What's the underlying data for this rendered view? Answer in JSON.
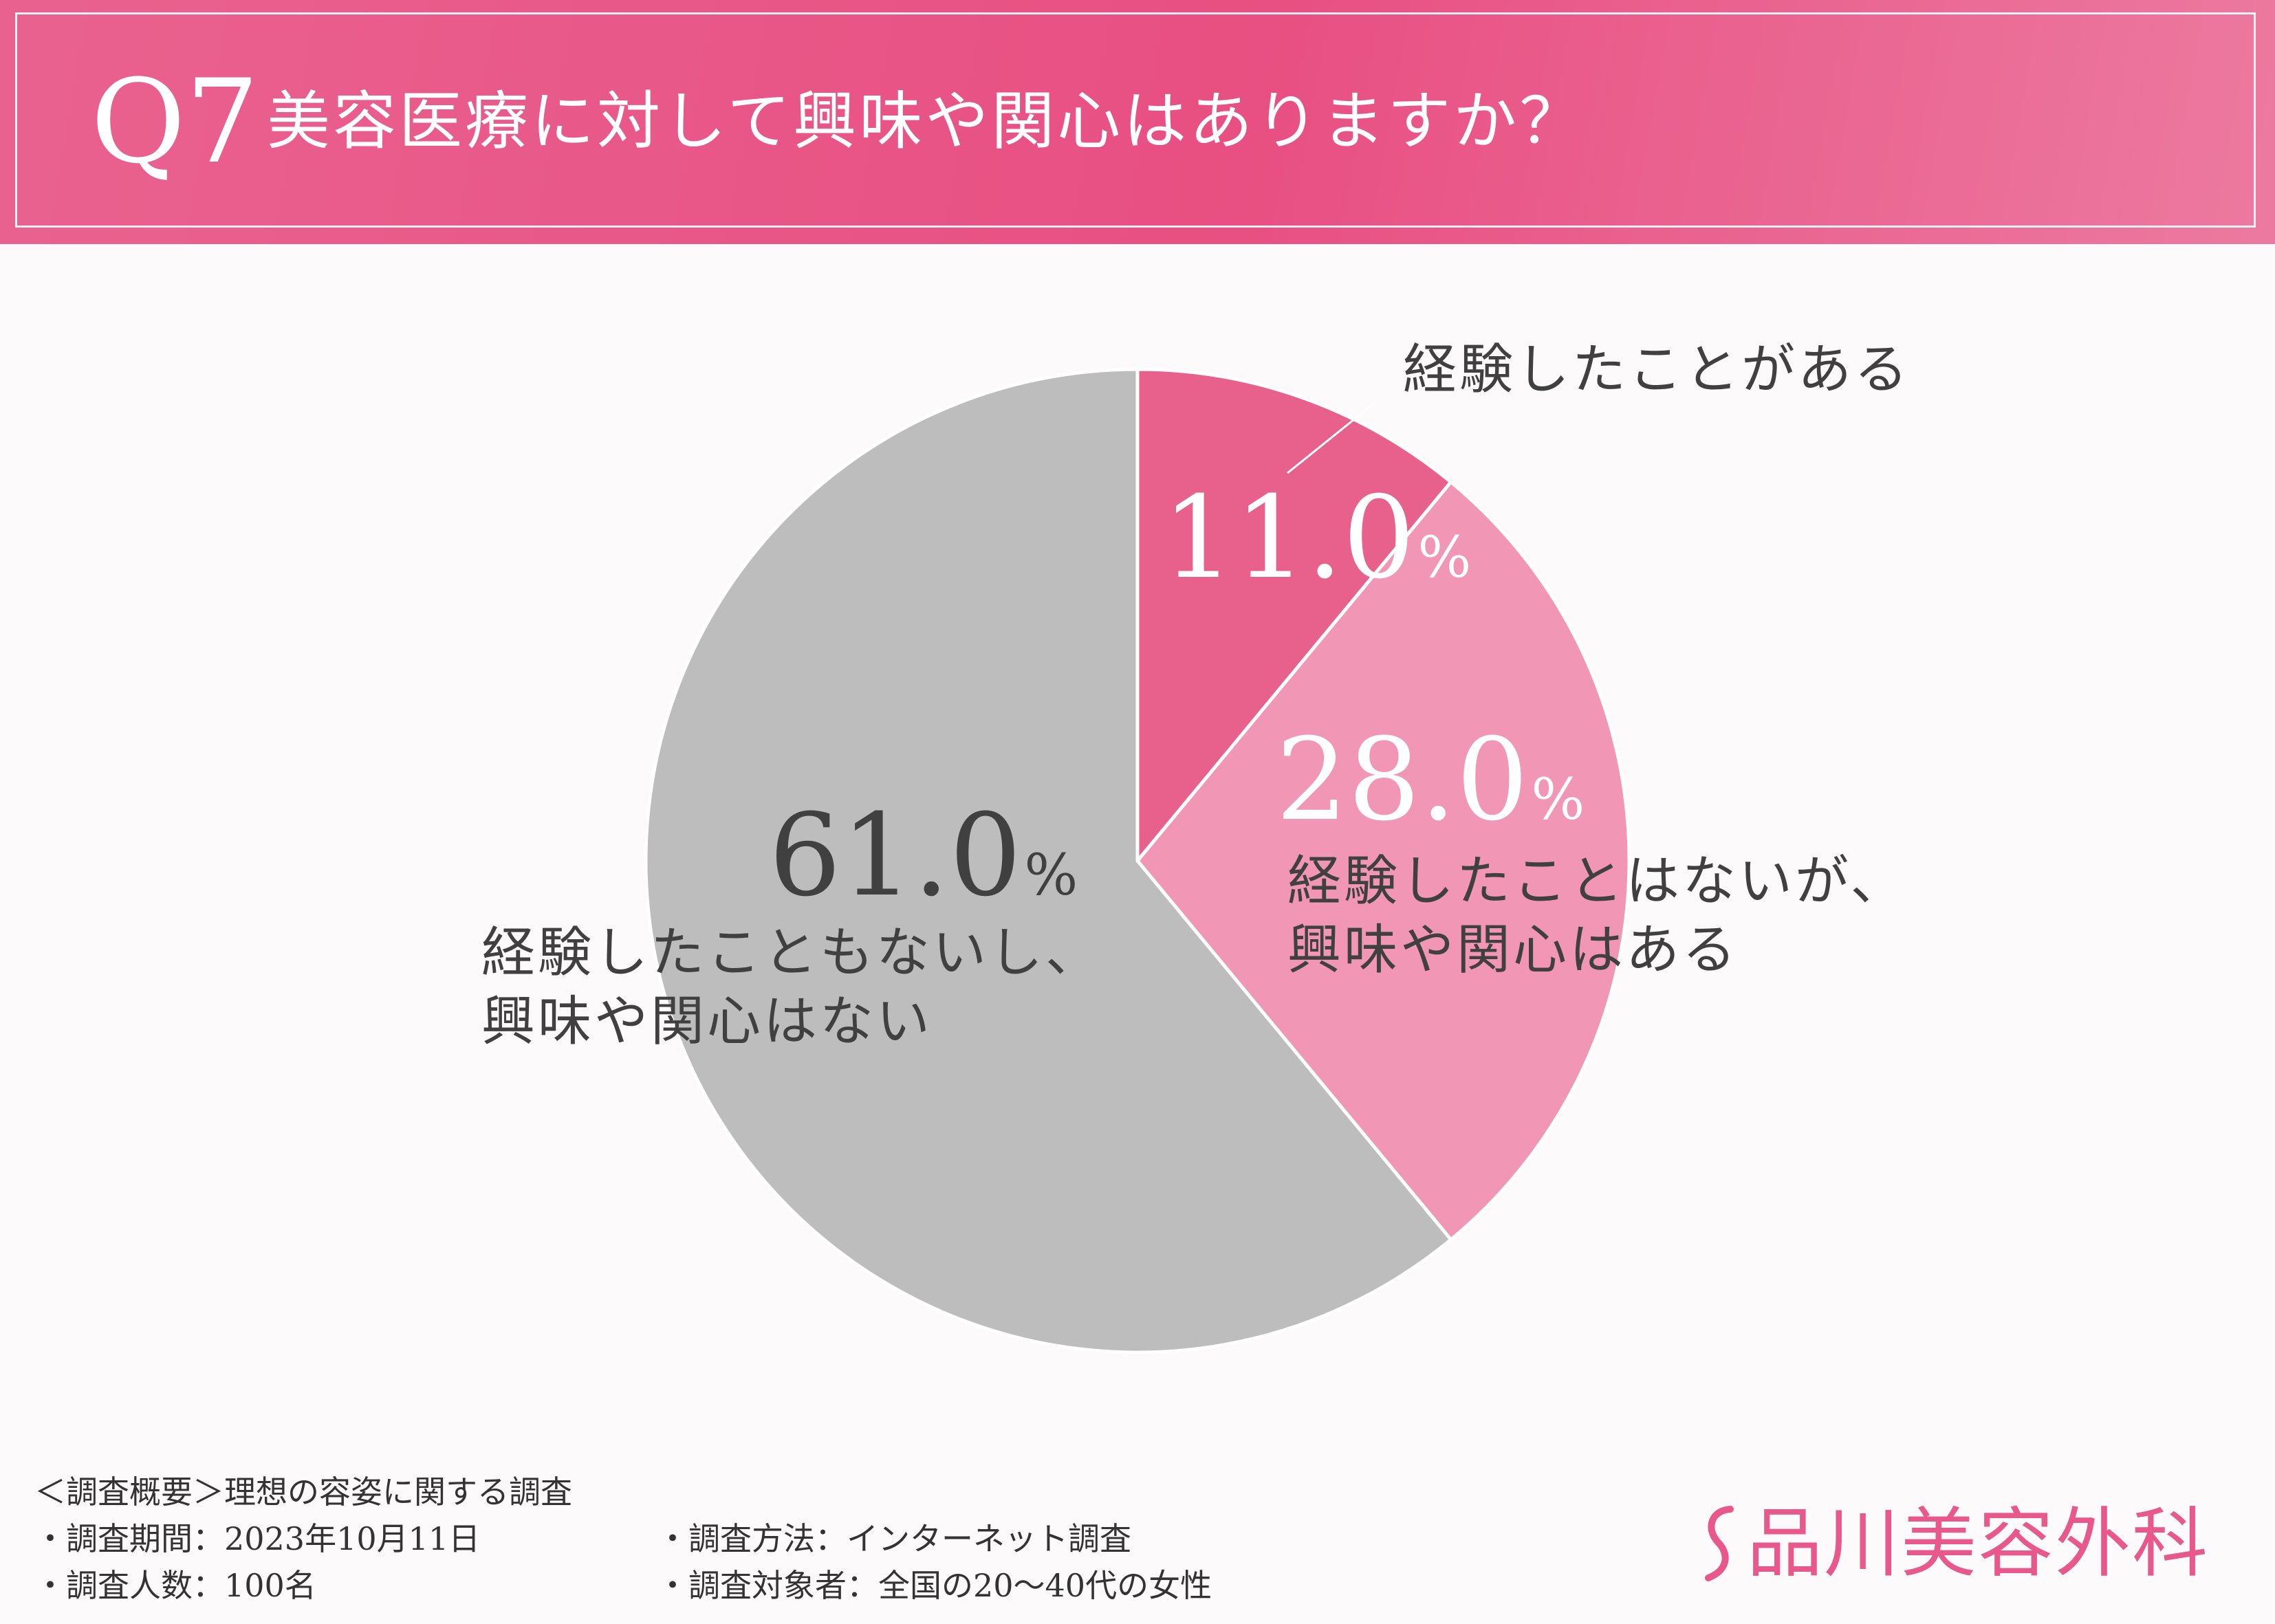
{
  "header": {
    "q_number": "Q7",
    "question": "美容医療に対して興味や関心はありますか？"
  },
  "chart_data": {
    "type": "pie",
    "slices": [
      {
        "label": "経験したことがある",
        "value": 11.0,
        "color": "#e8608c"
      },
      {
        "label": "経験したことはないが、\n興味や関心はある",
        "value": 28.0,
        "color": "#f196b4"
      },
      {
        "label": "経験したこともないし、\n興味や関心はない",
        "value": 61.0,
        "color": "#bdbdbd"
      }
    ],
    "value_suffix": "%",
    "start_angle": "12 o'clock",
    "direction": "clockwise"
  },
  "footer": {
    "summary": "＜調査概要＞理想の容姿に関する調査",
    "period": "・調査期間：2023年10月11日",
    "method": "・調査方法：インターネット調査",
    "count": "・調査人数：100名",
    "target": "・調査対象者：全国の20〜40代の女性"
  },
  "logo": {
    "text": "品川美容外科",
    "color": "#e8588a"
  }
}
